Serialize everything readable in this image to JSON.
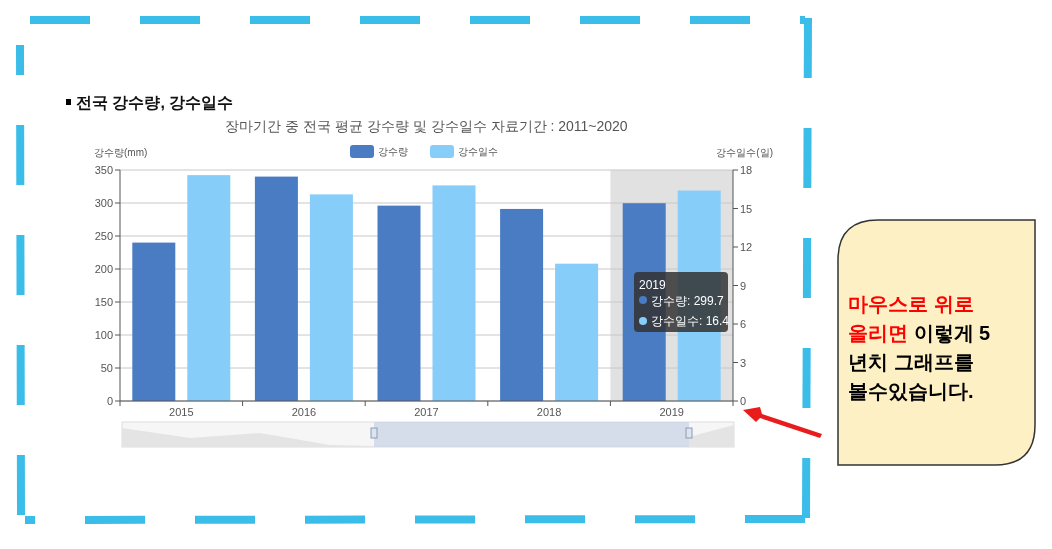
{
  "chart_data": {
    "type": "bar",
    "title": "전국 강수량, 강수일수",
    "subtitle": "장마기간 중 전국 평균 강수량 및 강수일수 자료기간 : 2011~2020",
    "ylabel": "강수량(mm)",
    "y2label": "강수일수(일)",
    "categories": [
      "2015",
      "2016",
      "2017",
      "2018",
      "2019"
    ],
    "series": [
      {
        "name": "강수량",
        "color": "#4a7cc4",
        "values": [
          240,
          340,
          296,
          291,
          299.7
        ]
      },
      {
        "name": "강수일수",
        "color": "#87cdf9",
        "axis": "y2",
        "values": [
          17.6,
          16.1,
          16.8,
          10.7,
          16.4
        ]
      }
    ],
    "ylim": [
      0,
      350
    ],
    "yticks": [
      0,
      50,
      100,
      150,
      200,
      250,
      300,
      350
    ],
    "y2lim": [
      0,
      18
    ],
    "y2ticks": [
      0,
      3,
      6,
      9,
      12,
      15,
      18
    ],
    "bands": [
      {
        "axis": "x",
        "from": "2019",
        "to": "2019",
        "color": "#d9d9d9"
      }
    ],
    "annotations": [
      "2019",
      "강수량: 299.7",
      "강수일수: 16.4",
      "마우스로 위로 올리면",
      "이렇게 5년치 그래프를 볼수있습니다."
    ],
    "grid": "y",
    "legend": "top"
  }
}
